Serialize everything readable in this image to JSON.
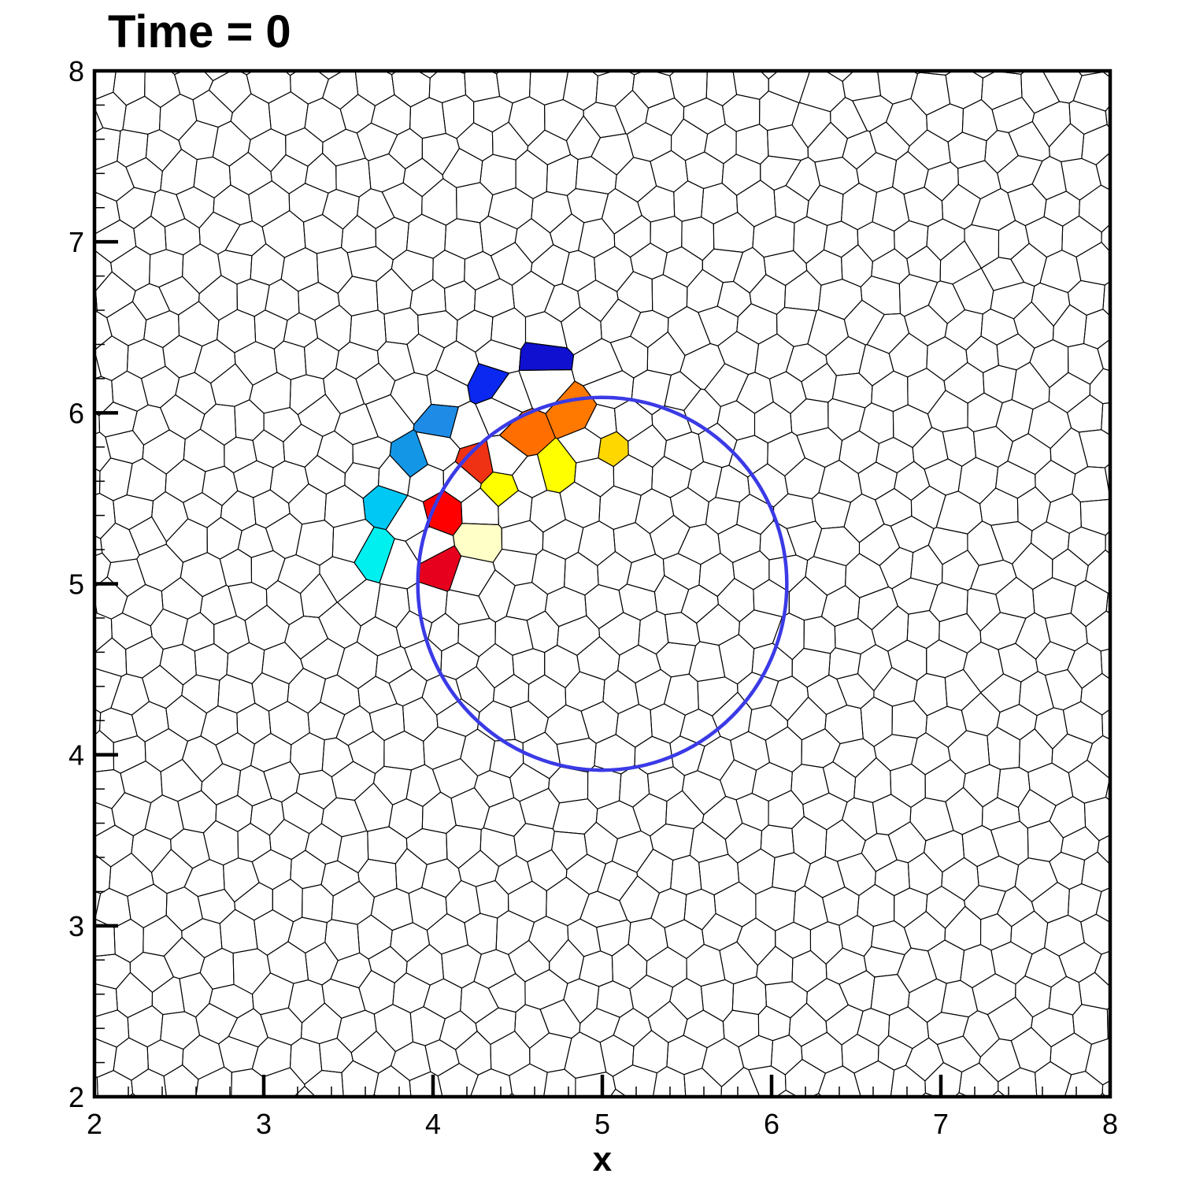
{
  "chart_data": {
    "type": "mesh",
    "title": "Time = 0",
    "xlabel": "x",
    "ylabel": "",
    "xlim": [
      2,
      8
    ],
    "ylim": [
      2,
      8
    ],
    "xticks": [
      "2",
      "3",
      "4",
      "5",
      "6",
      "7",
      "8"
    ],
    "yticks": [
      "2",
      "3",
      "4",
      "5",
      "6",
      "7",
      "8"
    ],
    "grid": false,
    "circle": {
      "center": [
        5.0,
        5.0
      ],
      "radius": 1.09,
      "color": "#3a3ae6"
    },
    "colored_cells": [
      {
        "x": 4.65,
        "y": 6.32,
        "color": "#1010d0"
      },
      {
        "x": 4.33,
        "y": 6.18,
        "color": "#0a28f0"
      },
      {
        "x": 4.06,
        "y": 5.95,
        "color": "#1e8ce6"
      },
      {
        "x": 3.87,
        "y": 5.72,
        "color": "#1496e6"
      },
      {
        "x": 3.72,
        "y": 5.48,
        "color": "#00c8f5"
      },
      {
        "x": 3.65,
        "y": 5.17,
        "color": "#00f0f0"
      },
      {
        "x": 4.03,
        "y": 5.1,
        "color": "#e6001e"
      },
      {
        "x": 4.05,
        "y": 5.43,
        "color": "#ff0000"
      },
      {
        "x": 4.25,
        "y": 5.7,
        "color": "#f03214"
      },
      {
        "x": 4.53,
        "y": 5.87,
        "color": "#ff6e00"
      },
      {
        "x": 4.85,
        "y": 6.0,
        "color": "#ff7800"
      },
      {
        "x": 4.4,
        "y": 5.55,
        "color": "#ffff00"
      },
      {
        "x": 4.72,
        "y": 5.66,
        "color": "#ffff00"
      },
      {
        "x": 5.05,
        "y": 5.8,
        "color": "#ffd700"
      },
      {
        "x": 4.28,
        "y": 5.26,
        "color": "#ffffc8"
      }
    ]
  }
}
